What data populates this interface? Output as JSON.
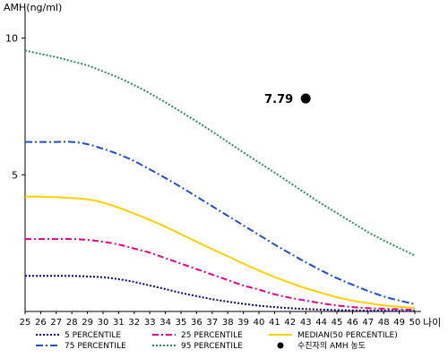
{
  "chart_data": {
    "type": "line",
    "ylabel": "AMH(ng/ml)",
    "xlabel": "나이",
    "xlim": [
      25,
      50
    ],
    "ylim": [
      0,
      11
    ],
    "x_ticks": [
      "25",
      "26",
      "27",
      "28",
      "29",
      "30",
      "31",
      "32",
      "33",
      "34",
      "35",
      "36",
      "37",
      "38",
      "39",
      "40",
      "41",
      "42",
      "43",
      "44",
      "45",
      "46",
      "47",
      "48",
      "49",
      "50"
    ],
    "y_ticks": [
      "5",
      "10"
    ],
    "grid": false,
    "x": [
      25,
      26,
      27,
      28,
      29,
      30,
      31,
      32,
      33,
      34,
      35,
      36,
      37,
      38,
      39,
      40,
      41,
      42,
      43,
      44,
      45,
      46,
      47,
      48,
      49,
      50
    ],
    "series": [
      {
        "name": "5 PERCENTILE",
        "color": "#000080",
        "dash": "2,2",
        "width": 2,
        "values": [
          1.3,
          1.3,
          1.3,
          1.3,
          1.28,
          1.25,
          1.18,
          1.08,
          0.95,
          0.82,
          0.68,
          0.56,
          0.45,
          0.36,
          0.28,
          0.21,
          0.16,
          0.12,
          0.09,
          0.07,
          0.05,
          0.04,
          0.03,
          0.03,
          0.02,
          0.02
        ]
      },
      {
        "name": "25 PERCENTILE",
        "color": "#e0008a",
        "dash": "7,3,2,3",
        "width": 2,
        "values": [
          2.65,
          2.65,
          2.65,
          2.65,
          2.62,
          2.55,
          2.45,
          2.3,
          2.15,
          1.95,
          1.75,
          1.55,
          1.35,
          1.15,
          0.95,
          0.8,
          0.63,
          0.5,
          0.4,
          0.3,
          0.22,
          0.16,
          0.12,
          0.1,
          0.08,
          0.06
        ]
      },
      {
        "name": "MEDIAN(50 PERCENTILE)",
        "color": "#ffd000",
        "dash": "",
        "width": 2,
        "values": [
          4.2,
          4.2,
          4.18,
          4.15,
          4.1,
          3.98,
          3.8,
          3.58,
          3.35,
          3.1,
          2.83,
          2.55,
          2.28,
          2.02,
          1.75,
          1.5,
          1.26,
          1.05,
          0.85,
          0.68,
          0.52,
          0.4,
          0.3,
          0.22,
          0.17,
          0.13
        ]
      },
      {
        "name": "75 PERCENTILE",
        "color": "#2050c0",
        "dash": "8,3,2,3",
        "width": 2,
        "values": [
          6.2,
          6.2,
          6.2,
          6.2,
          6.12,
          5.95,
          5.75,
          5.5,
          5.2,
          4.88,
          4.55,
          4.2,
          3.85,
          3.5,
          3.15,
          2.8,
          2.45,
          2.12,
          1.8,
          1.5,
          1.22,
          0.98,
          0.75,
          0.55,
          0.4,
          0.27
        ]
      },
      {
        "name": "95 PERCENTILE",
        "color": "#2e8b57",
        "dash": "2,2",
        "width": 2,
        "values": [
          9.55,
          9.42,
          9.3,
          9.15,
          9.0,
          8.78,
          8.55,
          8.28,
          7.98,
          7.65,
          7.3,
          6.95,
          6.58,
          6.2,
          5.82,
          5.45,
          5.08,
          4.7,
          4.32,
          3.95,
          3.6,
          3.25,
          2.9,
          2.6,
          2.32,
          2.05
        ]
      }
    ],
    "annotation": {
      "name": "수진자의 AMH 농도",
      "x": 43,
      "y": 7.79,
      "label": "7.79",
      "color": "#000000"
    }
  }
}
